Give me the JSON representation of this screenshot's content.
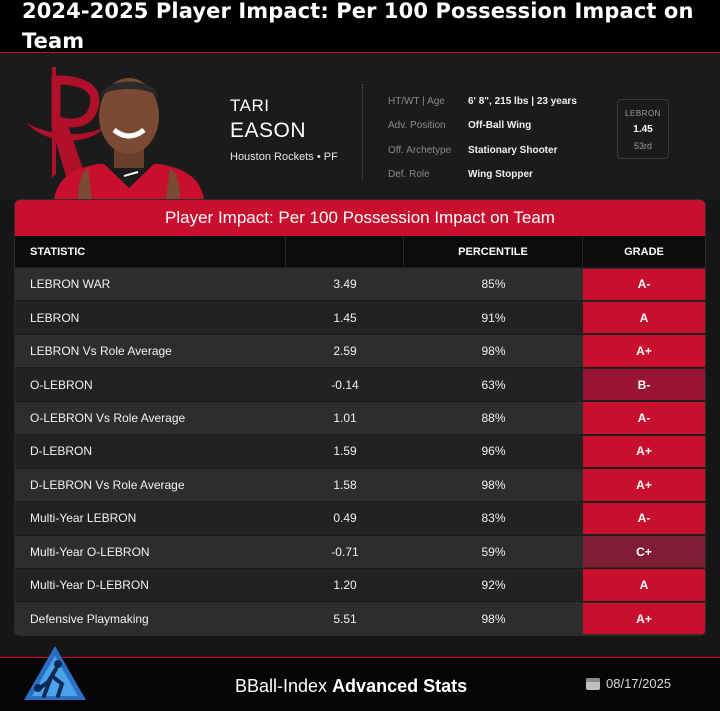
{
  "page_title": "2024-2025 Player Impact: Per 100 Possession Impact on Team",
  "player": {
    "first_name": "TARI",
    "last_name": "EASON",
    "team_line": "Houston Rockets • PF"
  },
  "info": [
    {
      "label": "HT/WT | Age",
      "value": "6' 8\", 215 lbs | 23 years"
    },
    {
      "label": "Adv. Position",
      "value": "Off-Ball Wing"
    },
    {
      "label": "Off. Archetype",
      "value": "Stationary Shooter"
    },
    {
      "label": "Def. Role",
      "value": "Wing Stopper"
    }
  ],
  "lebron_box": {
    "label": "LEBRON",
    "value": "1.45",
    "rank": "53rd"
  },
  "table": {
    "title": "Player Impact: Per 100 Possession Impact on Team",
    "headers": {
      "statistic": "STATISTIC",
      "value": "",
      "percentile": "PERCENTILE",
      "grade": "GRADE"
    },
    "rows": [
      {
        "stat": "LEBRON WAR",
        "value": "3.49",
        "percentile": "85%",
        "grade": "A-"
      },
      {
        "stat": "LEBRON",
        "value": "1.45",
        "percentile": "91%",
        "grade": "A"
      },
      {
        "stat": "LEBRON Vs Role Average",
        "value": "2.59",
        "percentile": "98%",
        "grade": "A+"
      },
      {
        "stat": "O-LEBRON",
        "value": "-0.14",
        "percentile": "63%",
        "grade": "B-"
      },
      {
        "stat": "O-LEBRON Vs Role Average",
        "value": "1.01",
        "percentile": "88%",
        "grade": "A-"
      },
      {
        "stat": "D-LEBRON",
        "value": "1.59",
        "percentile": "96%",
        "grade": "A+"
      },
      {
        "stat": "D-LEBRON Vs Role Average",
        "value": "1.58",
        "percentile": "98%",
        "grade": "A+"
      },
      {
        "stat": "Multi-Year LEBRON",
        "value": "0.49",
        "percentile": "83%",
        "grade": "A-"
      },
      {
        "stat": "Multi-Year O-LEBRON",
        "value": "-0.71",
        "percentile": "59%",
        "grade": "C+"
      },
      {
        "stat": "Multi-Year D-LEBRON",
        "value": "1.20",
        "percentile": "92%",
        "grade": "A"
      },
      {
        "stat": "Defensive Playmaking",
        "value": "5.51",
        "percentile": "98%",
        "grade": "A+"
      }
    ]
  },
  "footer": {
    "brand_light": "BBall-Index ",
    "brand_bold": "Advanced Stats",
    "date": "08/17/2025",
    "date_icon": "calendar-icon"
  },
  "colors": {
    "accent": "#c8102e",
    "grade_mid": "#9a1434",
    "grade_low": "#7f1d34"
  }
}
